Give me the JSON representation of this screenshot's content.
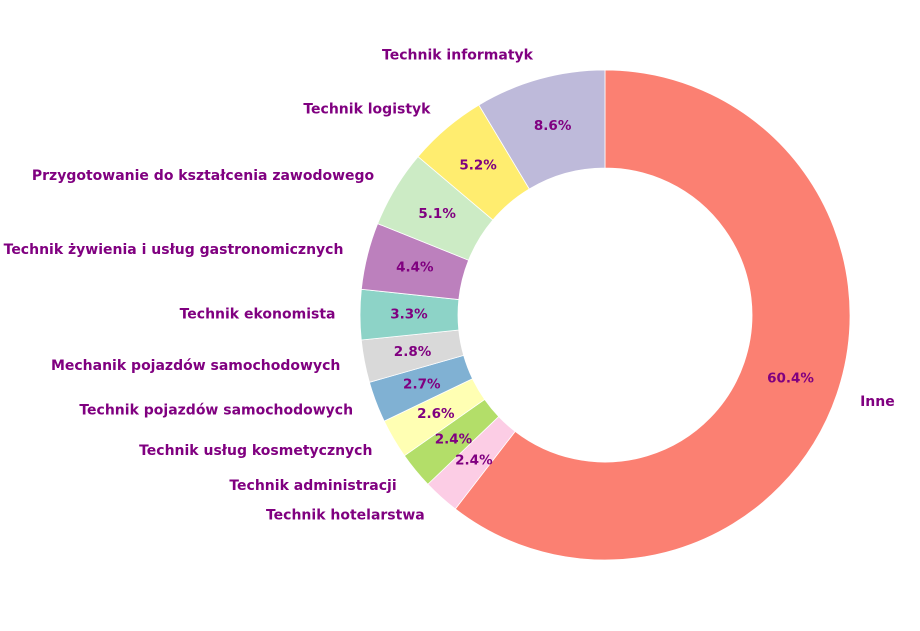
{
  "chart_data": {
    "type": "pie",
    "variant": "donut",
    "title": "",
    "start": "top",
    "direction": "clockwise",
    "label_color": "#800080",
    "slices": [
      {
        "label": "Inne",
        "value": 60.4,
        "pct_label": "60.4%",
        "color": "#fb8072"
      },
      {
        "label": "Technik hotelarstwa",
        "value": 2.4,
        "pct_label": "2.4%",
        "color": "#fccde5"
      },
      {
        "label": "Technik administracji",
        "value": 2.4,
        "pct_label": "2.4%",
        "color": "#b3de69"
      },
      {
        "label": "Technik usług kosmetycznych",
        "value": 2.6,
        "pct_label": "2.6%",
        "color": "#ffffb3"
      },
      {
        "label": "Technik pojazdów samochodowych",
        "value": 2.7,
        "pct_label": "2.7%",
        "color": "#80b1d3"
      },
      {
        "label": "Mechanik pojazdów samochodowych",
        "value": 2.8,
        "pct_label": "2.8%",
        "color": "#d9d9d9"
      },
      {
        "label": "Technik ekonomista",
        "value": 3.3,
        "pct_label": "3.3%",
        "color": "#8dd3c7"
      },
      {
        "label": "Technik żywienia i usług gastronomicznych",
        "value": 4.4,
        "pct_label": "4.4%",
        "color": "#bc80bd"
      },
      {
        "label": "Przygotowanie do kształcenia zawodowego",
        "value": 5.1,
        "pct_label": "5.1%",
        "color": "#ccebc5"
      },
      {
        "label": "Technik logistyk",
        "value": 5.2,
        "pct_label": "5.2%",
        "color": "#ffed6f"
      },
      {
        "label": "Technik informatyk",
        "value": 8.6,
        "pct_label": "8.6%",
        "color": "#bebada"
      }
    ]
  }
}
